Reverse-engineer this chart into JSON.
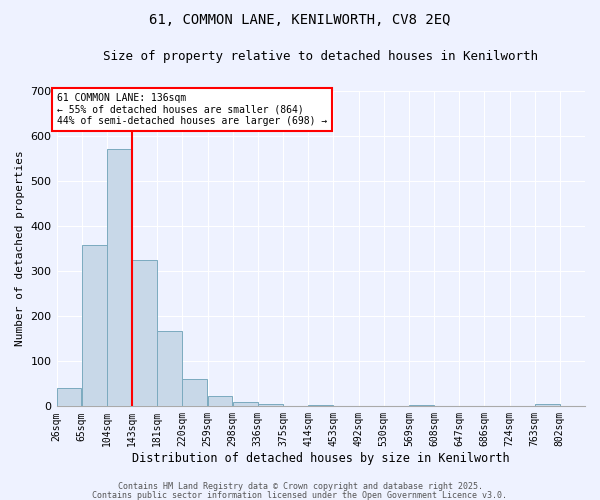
{
  "title1": "61, COMMON LANE, KENILWORTH, CV8 2EQ",
  "title2": "Size of property relative to detached houses in Kenilworth",
  "xlabel": "Distribution of detached houses by size in Kenilworth",
  "ylabel": "Number of detached properties",
  "categories": [
    "26sqm",
    "65sqm",
    "104sqm",
    "143sqm",
    "181sqm",
    "220sqm",
    "259sqm",
    "298sqm",
    "336sqm",
    "375sqm",
    "414sqm",
    "453sqm",
    "492sqm",
    "530sqm",
    "569sqm",
    "608sqm",
    "647sqm",
    "686sqm",
    "724sqm",
    "763sqm",
    "802sqm"
  ],
  "values": [
    40,
    357,
    570,
    325,
    168,
    60,
    22,
    10,
    5,
    0,
    3,
    0,
    0,
    0,
    4,
    0,
    0,
    0,
    0,
    5,
    0
  ],
  "bar_color": "#c8d8e8",
  "bar_edge_color": "#7baabf",
  "vline_color": "red",
  "annotation_text": "61 COMMON LANE: 136sqm\n← 55% of detached houses are smaller (864)\n44% of semi-detached houses are larger (698) →",
  "ylim": [
    0,
    700
  ],
  "yticks": [
    0,
    100,
    200,
    300,
    400,
    500,
    600,
    700
  ],
  "background_color": "#eef2ff",
  "footer1": "Contains HM Land Registry data © Crown copyright and database right 2025.",
  "footer2": "Contains public sector information licensed under the Open Government Licence v3.0.",
  "grid_color": "#ffffff",
  "title1_fontsize": 10,
  "title2_fontsize": 9,
  "xlabel_fontsize": 8.5,
  "ylabel_fontsize": 8,
  "tick_fontsize": 7,
  "ann_fontsize": 7,
  "footer_fontsize": 6
}
